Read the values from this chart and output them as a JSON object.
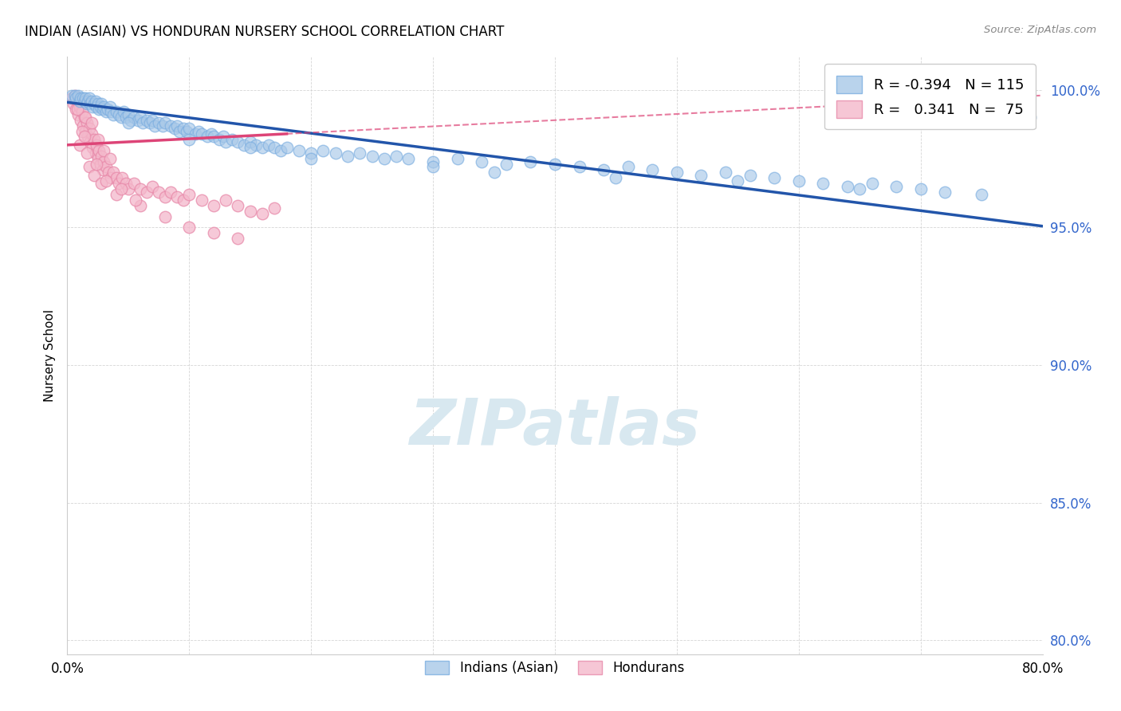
{
  "title": "INDIAN (ASIAN) VS HONDURAN NURSERY SCHOOL CORRELATION CHART",
  "source": "Source: ZipAtlas.com",
  "ylabel": "Nursery School",
  "ytick_values": [
    0.8,
    0.85,
    0.9,
    0.95,
    1.0
  ],
  "ytick_labels": [
    "80.0%",
    "85.0%",
    "90.0%",
    "95.0%",
    "100.0%"
  ],
  "xlim": [
    0.0,
    0.8
  ],
  "ylim": [
    0.795,
    1.012
  ],
  "bg_color": "#ffffff",
  "grid_color": "#cccccc",
  "blue_color": "#a8c8e8",
  "blue_edge_color": "#7aade0",
  "pink_color": "#f4b8cb",
  "pink_edge_color": "#e88aaa",
  "trend_blue_color": "#2255aa",
  "trend_pink_solid_color": "#dd4477",
  "trend_pink_dash_color": "#dd4477",
  "ytick_color": "#3366cc",
  "watermark_color": "#d8e8f0",
  "blue_scatter": [
    [
      0.004,
      0.998
    ],
    [
      0.006,
      0.998
    ],
    [
      0.007,
      0.997
    ],
    [
      0.009,
      0.998
    ],
    [
      0.01,
      0.996
    ],
    [
      0.011,
      0.997
    ],
    [
      0.013,
      0.997
    ],
    [
      0.014,
      0.996
    ],
    [
      0.015,
      0.997
    ],
    [
      0.016,
      0.995
    ],
    [
      0.017,
      0.996
    ],
    [
      0.018,
      0.997
    ],
    [
      0.019,
      0.995
    ],
    [
      0.02,
      0.996
    ],
    [
      0.021,
      0.994
    ],
    [
      0.022,
      0.995
    ],
    [
      0.023,
      0.996
    ],
    [
      0.024,
      0.994
    ],
    [
      0.025,
      0.995
    ],
    [
      0.026,
      0.993
    ],
    [
      0.027,
      0.994
    ],
    [
      0.028,
      0.995
    ],
    [
      0.029,
      0.993
    ],
    [
      0.03,
      0.994
    ],
    [
      0.032,
      0.992
    ],
    [
      0.033,
      0.993
    ],
    [
      0.035,
      0.994
    ],
    [
      0.036,
      0.992
    ],
    [
      0.038,
      0.991
    ],
    [
      0.04,
      0.992
    ],
    [
      0.042,
      0.991
    ],
    [
      0.044,
      0.99
    ],
    [
      0.046,
      0.992
    ],
    [
      0.048,
      0.99
    ],
    [
      0.05,
      0.991
    ],
    [
      0.052,
      0.989
    ],
    [
      0.055,
      0.99
    ],
    [
      0.058,
      0.989
    ],
    [
      0.06,
      0.99
    ],
    [
      0.062,
      0.988
    ],
    [
      0.065,
      0.989
    ],
    [
      0.068,
      0.988
    ],
    [
      0.07,
      0.989
    ],
    [
      0.072,
      0.987
    ],
    [
      0.075,
      0.988
    ],
    [
      0.078,
      0.987
    ],
    [
      0.08,
      0.988
    ],
    [
      0.085,
      0.987
    ],
    [
      0.088,
      0.986
    ],
    [
      0.09,
      0.987
    ],
    [
      0.092,
      0.985
    ],
    [
      0.095,
      0.986
    ],
    [
      0.098,
      0.985
    ],
    [
      0.1,
      0.986
    ],
    [
      0.105,
      0.984
    ],
    [
      0.108,
      0.985
    ],
    [
      0.11,
      0.984
    ],
    [
      0.115,
      0.983
    ],
    [
      0.118,
      0.984
    ],
    [
      0.12,
      0.983
    ],
    [
      0.125,
      0.982
    ],
    [
      0.128,
      0.983
    ],
    [
      0.13,
      0.981
    ],
    [
      0.135,
      0.982
    ],
    [
      0.14,
      0.981
    ],
    [
      0.145,
      0.98
    ],
    [
      0.15,
      0.981
    ],
    [
      0.155,
      0.98
    ],
    [
      0.16,
      0.979
    ],
    [
      0.165,
      0.98
    ],
    [
      0.17,
      0.979
    ],
    [
      0.175,
      0.978
    ],
    [
      0.18,
      0.979
    ],
    [
      0.19,
      0.978
    ],
    [
      0.2,
      0.977
    ],
    [
      0.21,
      0.978
    ],
    [
      0.22,
      0.977
    ],
    [
      0.23,
      0.976
    ],
    [
      0.24,
      0.977
    ],
    [
      0.25,
      0.976
    ],
    [
      0.26,
      0.975
    ],
    [
      0.27,
      0.976
    ],
    [
      0.28,
      0.975
    ],
    [
      0.3,
      0.974
    ],
    [
      0.32,
      0.975
    ],
    [
      0.34,
      0.974
    ],
    [
      0.36,
      0.973
    ],
    [
      0.38,
      0.974
    ],
    [
      0.4,
      0.973
    ],
    [
      0.42,
      0.972
    ],
    [
      0.44,
      0.971
    ],
    [
      0.46,
      0.972
    ],
    [
      0.48,
      0.971
    ],
    [
      0.5,
      0.97
    ],
    [
      0.52,
      0.969
    ],
    [
      0.54,
      0.97
    ],
    [
      0.56,
      0.969
    ],
    [
      0.58,
      0.968
    ],
    [
      0.6,
      0.967
    ],
    [
      0.62,
      0.966
    ],
    [
      0.64,
      0.965
    ],
    [
      0.66,
      0.966
    ],
    [
      0.68,
      0.965
    ],
    [
      0.7,
      0.964
    ],
    [
      0.72,
      0.963
    ],
    [
      0.74,
      1.0
    ],
    [
      0.76,
      1.0
    ],
    [
      0.77,
      0.999
    ],
    [
      0.78,
      1.0
    ],
    [
      0.79,
      0.99
    ],
    [
      0.35,
      0.97
    ],
    [
      0.45,
      0.968
    ],
    [
      0.55,
      0.967
    ],
    [
      0.65,
      0.964
    ],
    [
      0.75,
      0.962
    ],
    [
      0.2,
      0.975
    ],
    [
      0.1,
      0.982
    ],
    [
      0.05,
      0.988
    ],
    [
      0.15,
      0.979
    ],
    [
      0.3,
      0.972
    ]
  ],
  "pink_scatter": [
    [
      0.004,
      0.997
    ],
    [
      0.005,
      0.995
    ],
    [
      0.006,
      0.998
    ],
    [
      0.007,
      0.993
    ],
    [
      0.008,
      0.996
    ],
    [
      0.009,
      0.991
    ],
    [
      0.01,
      0.994
    ],
    [
      0.011,
      0.989
    ],
    [
      0.012,
      0.992
    ],
    [
      0.013,
      0.987
    ],
    [
      0.014,
      0.99
    ],
    [
      0.015,
      0.985
    ],
    [
      0.016,
      0.988
    ],
    [
      0.017,
      0.983
    ],
    [
      0.018,
      0.986
    ],
    [
      0.019,
      0.981
    ],
    [
      0.02,
      0.984
    ],
    [
      0.021,
      0.979
    ],
    [
      0.022,
      0.982
    ],
    [
      0.023,
      0.977
    ],
    [
      0.024,
      0.98
    ],
    [
      0.025,
      0.975
    ],
    [
      0.026,
      0.978
    ],
    [
      0.027,
      0.973
    ],
    [
      0.028,
      0.976
    ],
    [
      0.029,
      0.971
    ],
    [
      0.03,
      0.974
    ],
    [
      0.032,
      0.972
    ],
    [
      0.034,
      0.97
    ],
    [
      0.036,
      0.968
    ],
    [
      0.038,
      0.97
    ],
    [
      0.04,
      0.968
    ],
    [
      0.042,
      0.966
    ],
    [
      0.045,
      0.968
    ],
    [
      0.048,
      0.966
    ],
    [
      0.05,
      0.964
    ],
    [
      0.055,
      0.966
    ],
    [
      0.06,
      0.964
    ],
    [
      0.065,
      0.963
    ],
    [
      0.07,
      0.965
    ],
    [
      0.075,
      0.963
    ],
    [
      0.08,
      0.961
    ],
    [
      0.085,
      0.963
    ],
    [
      0.09,
      0.961
    ],
    [
      0.095,
      0.96
    ],
    [
      0.1,
      0.962
    ],
    [
      0.11,
      0.96
    ],
    [
      0.12,
      0.958
    ],
    [
      0.13,
      0.96
    ],
    [
      0.14,
      0.958
    ],
    [
      0.15,
      0.956
    ],
    [
      0.16,
      0.955
    ],
    [
      0.17,
      0.957
    ],
    [
      0.012,
      0.985
    ],
    [
      0.015,
      0.99
    ],
    [
      0.02,
      0.988
    ],
    [
      0.025,
      0.982
    ],
    [
      0.03,
      0.978
    ],
    [
      0.035,
      0.975
    ],
    [
      0.008,
      0.993
    ],
    [
      0.01,
      0.98
    ],
    [
      0.018,
      0.972
    ],
    [
      0.022,
      0.969
    ],
    [
      0.028,
      0.966
    ],
    [
      0.04,
      0.962
    ],
    [
      0.06,
      0.958
    ],
    [
      0.08,
      0.954
    ],
    [
      0.1,
      0.95
    ],
    [
      0.12,
      0.948
    ],
    [
      0.14,
      0.946
    ],
    [
      0.014,
      0.983
    ],
    [
      0.016,
      0.977
    ],
    [
      0.024,
      0.973
    ],
    [
      0.032,
      0.967
    ],
    [
      0.044,
      0.964
    ],
    [
      0.056,
      0.96
    ]
  ],
  "trend_blue_x0": 0.0,
  "trend_blue_y0": 0.9955,
  "trend_blue_x1": 0.8,
  "trend_blue_y1": 0.9505,
  "trend_pink_x0": 0.0,
  "trend_pink_y0": 0.98,
  "trend_pink_x1": 0.8,
  "trend_pink_y1": 0.998,
  "trend_pink_solid_end": 0.18
}
